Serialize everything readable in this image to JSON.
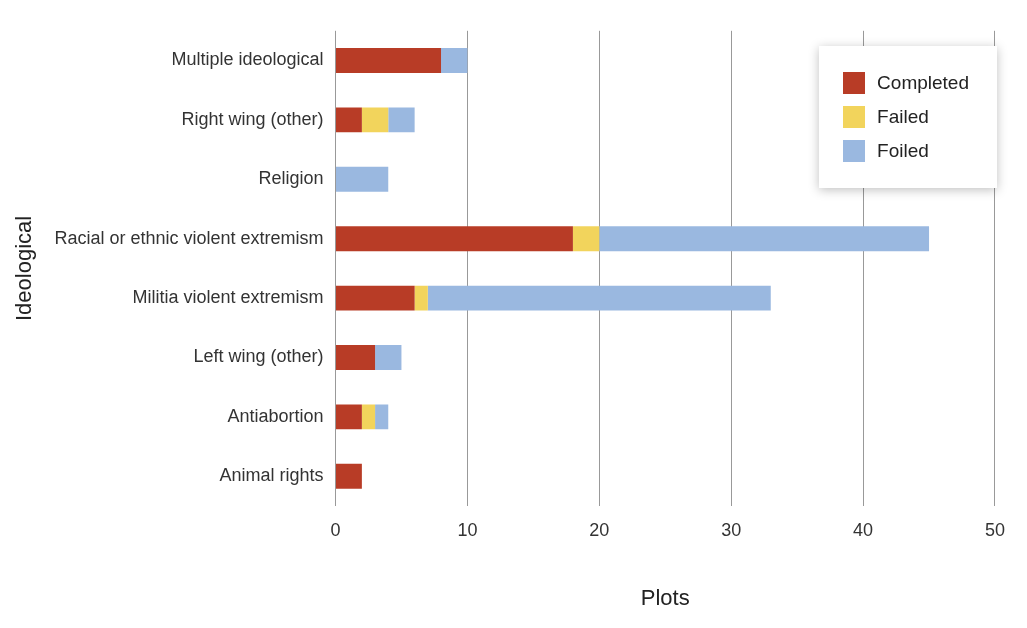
{
  "chart_data": {
    "type": "bar",
    "orientation": "horizontal",
    "stacked": true,
    "xlabel": "Plots",
    "ylabel": "Ideological",
    "categories": [
      "Multiple ideological",
      "Right wing (other)",
      "Religion",
      "Racial or ethnic violent extremism",
      "Militia violent extremism",
      "Left wing (other)",
      "Antiabortion",
      "Animal rights"
    ],
    "series": [
      {
        "name": "Completed",
        "color": "#b83c26",
        "values": [
          8,
          2,
          0,
          18,
          6,
          3,
          2,
          2
        ]
      },
      {
        "name": "Failed",
        "color": "#f2d45c",
        "values": [
          0,
          2,
          0,
          2,
          1,
          0,
          1,
          0
        ]
      },
      {
        "name": "Foiled",
        "color": "#9ab8e0",
        "values": [
          2,
          2,
          4,
          25,
          26,
          2,
          1,
          0
        ]
      }
    ],
    "xlim": [
      0,
      50
    ],
    "xticks": [
      0,
      10,
      20,
      30,
      40,
      50
    ],
    "grid": "x",
    "legend": "top right"
  }
}
